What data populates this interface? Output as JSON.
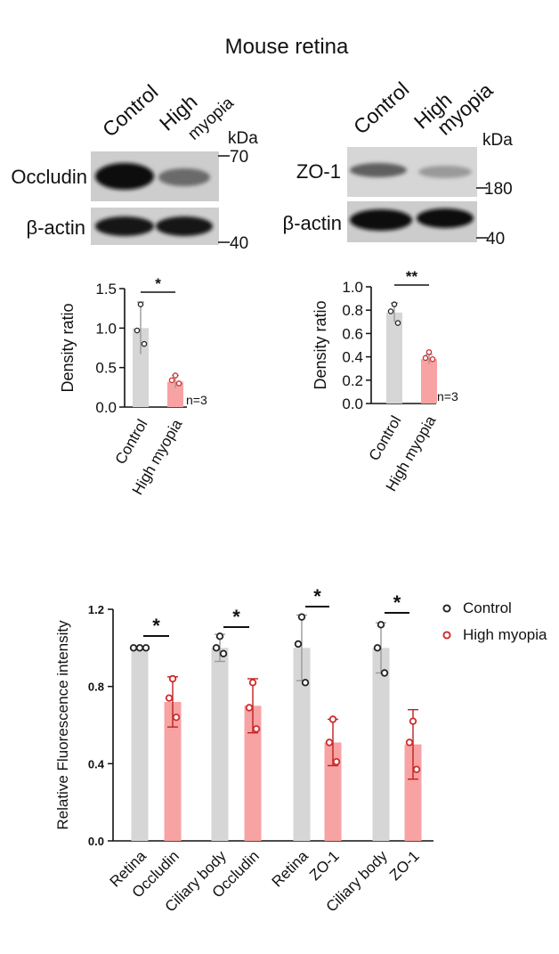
{
  "figure_title": "Mouse retina",
  "blots": [
    {
      "lane_labels": [
        "Control",
        "High",
        "myopia"
      ],
      "kda_label": "kDa",
      "target_protein": "Occludin",
      "target_marker": "70",
      "loading_control": "β-actin",
      "loading_marker": "40"
    },
    {
      "lane_labels": [
        "Control",
        "High",
        "myopia"
      ],
      "kda_label": "kDa",
      "target_protein": "ZO-1",
      "target_marker": "180",
      "loading_control": "β-actin",
      "loading_marker": "40"
    }
  ],
  "colors": {
    "control_bar": "#d6d6d6",
    "myopia_bar": "#f7a3a3",
    "control_point": "#222222",
    "myopia_point": "#d12a2a",
    "error_gray": "#9a9a9a",
    "error_red": "#c02020"
  },
  "chart_data": [
    {
      "type": "bar",
      "ylabel": "Density ratio",
      "ylim": [
        0,
        1.5
      ],
      "yticks": [
        "0.0",
        "0.5",
        "1.0",
        "1.5"
      ],
      "categories": [
        "Control",
        "High myopia"
      ],
      "values": [
        1.0,
        0.32
      ],
      "errors": [
        0.33,
        0.08
      ],
      "points": [
        [
          1.3,
          0.97,
          0.8
        ],
        [
          0.4,
          0.34,
          0.3
        ]
      ],
      "annotation": "n=3",
      "significance": "*"
    },
    {
      "type": "bar",
      "ylabel": "Density ratio",
      "ylim": [
        0,
        1.0
      ],
      "yticks": [
        "0.0",
        "0.2",
        "0.4",
        "0.6",
        "0.8",
        "1.0"
      ],
      "categories": [
        "Control",
        "High myopia"
      ],
      "values": [
        0.78,
        0.38
      ],
      "errors": [
        0.08,
        0.04
      ],
      "points": [
        [
          0.85,
          0.79,
          0.69
        ],
        [
          0.44,
          0.39,
          0.38
        ]
      ],
      "annotation": "n=3",
      "significance": "**"
    },
    {
      "type": "bar",
      "ylabel": "Relative Fluorescence intensity",
      "ylim": [
        0,
        1.2
      ],
      "yticks": [
        "0.0",
        "0.4",
        "0.8",
        "1.2"
      ],
      "groups": [
        {
          "tissue": "Retina",
          "marker": "Occludin",
          "significance": "*"
        },
        {
          "tissue": "Ciliary body",
          "marker": "Occludin",
          "significance": "*"
        },
        {
          "tissue": "Retina",
          "marker": "ZO-1",
          "significance": "*"
        },
        {
          "tissue": "Ciliary body",
          "marker": "ZO-1",
          "significance": "*"
        }
      ],
      "series": [
        {
          "name": "Control",
          "values": [
            1.0,
            1.0,
            1.0,
            1.0
          ],
          "errors": [
            0.0,
            0.07,
            0.17,
            0.13
          ],
          "points": [
            [
              1.0,
              1.0,
              1.0
            ],
            [
              1.06,
              1.0,
              0.97
            ],
            [
              1.16,
              1.02,
              0.82
            ],
            [
              1.12,
              1.0,
              0.87
            ]
          ]
        },
        {
          "name": "High myopia",
          "values": [
            0.72,
            0.7,
            0.51,
            0.5
          ],
          "errors": [
            0.13,
            0.14,
            0.12,
            0.18
          ],
          "points": [
            [
              0.84,
              0.74,
              0.64
            ],
            [
              0.82,
              0.69,
              0.58
            ],
            [
              0.63,
              0.51,
              0.41
            ],
            [
              0.62,
              0.51,
              0.37
            ]
          ]
        }
      ],
      "legend": "top-right"
    }
  ]
}
